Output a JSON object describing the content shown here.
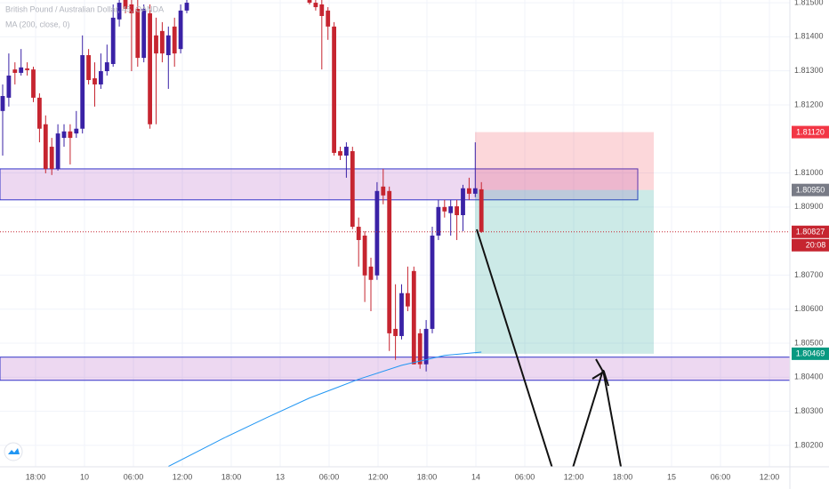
{
  "chart_data": {
    "type": "candlestick",
    "title": "British Pound / Australian Dollar, 45, OANDA",
    "up_color": "#3a22a6",
    "down_color": "#c62530",
    "open": [
      1.81182,
      1.81221,
      1.81304,
      1.81294,
      1.81307,
      1.81304,
      1.81221,
      1.81143,
      1.81077,
      1.81012,
      1.81103,
      1.81122,
      1.81116,
      1.8113,
      1.81346,
      1.81278,
      1.8126,
      1.81299,
      1.8132,
      1.81451,
      1.81508,
      1.81495,
      1.81482,
      1.81338,
      1.81469,
      1.81404,
      1.81417,
      1.81346,
      1.8143,
      1.81364,
      1.81477,
      null,
      null,
      null,
      null,
      null,
      null,
      null,
      null,
      null,
      null,
      null,
      null,
      null,
      null,
      null,
      null,
      null,
      null,
      null,
      1.81508,
      1.815,
      1.81495,
      1.81477,
      1.8143,
      1.81064,
      1.81051,
      1.81064,
      1.80842,
      1.80816,
      1.80725,
      1.80699,
      1.8096,
      1.80947,
      1.80542,
      1.80521,
      1.80647,
      1.80712,
      1.80529,
      1.80438,
      1.80542,
      1.80816,
      1.809,
      1.80882,
      1.80902,
      1.80876,
      1.80955,
      1.80939,
      1.80952
    ],
    "high": [
      1.8126,
      1.81351,
      1.81325,
      1.81364,
      1.81325,
      1.81312,
      1.81234,
      1.81169,
      1.81103,
      1.81143,
      1.81143,
      1.81143,
      1.81182,
      1.81404,
      1.81364,
      1.81325,
      1.81351,
      1.81377,
      1.81495,
      1.81508,
      1.81508,
      1.81508,
      1.81508,
      1.81495,
      1.81495,
      1.81456,
      1.81443,
      1.8143,
      1.81456,
      1.81495,
      1.81508,
      null,
      null,
      null,
      null,
      null,
      null,
      null,
      null,
      null,
      null,
      null,
      null,
      null,
      null,
      null,
      null,
      null,
      null,
      null,
      1.81508,
      1.81508,
      1.81508,
      1.81487,
      1.81443,
      1.81077,
      1.8109,
      1.81077,
      1.80869,
      1.80829,
      1.80751,
      1.80973,
      1.81012,
      1.8096,
      1.80673,
      1.80673,
      1.80725,
      1.80725,
      1.80542,
      1.80568,
      1.80842,
      1.80921,
      1.80921,
      1.80921,
      1.80921,
      1.80965,
      1.80986,
      1.8109,
      1.80973
    ],
    "low": [
      1.81051,
      1.81195,
      1.8126,
      1.81286,
      1.81286,
      1.81208,
      1.8109,
      1.80999,
      1.80994,
      1.81007,
      1.81077,
      1.81025,
      1.81103,
      1.81116,
      1.8126,
      1.81195,
      1.81247,
      1.81286,
      1.81312,
      1.8143,
      1.81469,
      1.81299,
      1.81312,
      1.81325,
      1.8113,
      1.81143,
      1.81325,
      1.81247,
      1.81312,
      1.81351,
      1.81469,
      null,
      null,
      null,
      null,
      null,
      null,
      null,
      null,
      null,
      null,
      null,
      null,
      null,
      null,
      null,
      null,
      null,
      null,
      null,
      1.81495,
      1.81477,
      1.81304,
      1.81391,
      1.81051,
      1.81038,
      1.80986,
      1.80835,
      1.80725,
      1.80621,
      1.80594,
      1.80686,
      1.80908,
      1.80477,
      1.80451,
      1.80511,
      1.80594,
      1.80438,
      1.80425,
      1.80417,
      1.80529,
      1.80803,
      1.80869,
      1.80816,
      1.80803,
      1.80829,
      1.80921,
      1.80929,
      1.80824
    ],
    "close": [
      1.81226,
      1.81286,
      1.81294,
      1.8131,
      1.81302,
      1.81221,
      1.8113,
      1.81012,
      1.81012,
      1.81116,
      1.81122,
      1.81103,
      1.8113,
      1.81346,
      1.81273,
      1.8126,
      1.81299,
      1.81325,
      1.81456,
      1.815,
      1.81482,
      1.81469,
      1.81338,
      1.81482,
      1.81143,
      1.81351,
      1.81351,
      1.81404,
      1.81351,
      1.81477,
      1.815,
      null,
      null,
      null,
      null,
      null,
      null,
      null,
      null,
      null,
      null,
      null,
      null,
      null,
      null,
      null,
      null,
      null,
      null,
      null,
      1.815,
      1.81487,
      1.81461,
      1.8143,
      1.81059,
      1.81051,
      1.81077,
      1.80842,
      1.80803,
      1.80699,
      1.80686,
      1.80947,
      1.80934,
      1.80529,
      1.80521,
      1.80647,
      1.80608,
      1.80438,
      1.80438,
      1.80542,
      1.80816,
      1.809,
      1.80887,
      1.80902,
      1.80876,
      1.80955,
      1.80939,
      1.80955,
      1.80827
    ],
    "ma": {
      "name": "MA (200, close, 0)",
      "color": "#2196f3",
      "x": [
        27,
        36,
        43,
        50,
        58,
        65,
        72,
        78
      ],
      "values": [
        1.80138,
        1.80221,
        1.80281,
        1.80339,
        1.80394,
        1.80435,
        1.80464,
        1.80474
      ]
    },
    "zones": [
      {
        "top": 1.81012,
        "bottom": 1.80921
      },
      {
        "top": 1.80459,
        "bottom": 1.80391
      }
    ],
    "position": {
      "stop": 1.8112,
      "entry": 1.8095,
      "target": 1.80469
    },
    "ylim": [
      1.80137,
      1.81508
    ],
    "yticks": [
      {
        "value": 1.815,
        "label": "1.81500"
      },
      {
        "value": 1.814,
        "label": "1.81400"
      },
      {
        "value": 1.813,
        "label": "1.81300"
      },
      {
        "value": 1.812,
        "label": "1.81200"
      },
      {
        "value": 1.81,
        "label": "1.81000"
      },
      {
        "value": 1.809,
        "label": "1.80900"
      },
      {
        "value": 1.807,
        "label": "1.80700"
      },
      {
        "value": 1.806,
        "label": "1.80600"
      },
      {
        "value": 1.805,
        "label": "1.80500"
      },
      {
        "value": 1.804,
        "label": "1.80400"
      },
      {
        "value": 1.803,
        "label": "1.80300"
      },
      {
        "value": 1.802,
        "label": "1.80200"
      }
    ],
    "xticks": [
      "18:00",
      "10",
      "06:00",
      "12:00",
      "18:00",
      "13",
      "06:00",
      "12:00",
      "18:00",
      "14",
      "06:00",
      "12:00",
      "18:00",
      "15",
      "06:00",
      "12:00"
    ],
    "price_labels": [
      {
        "value": 1.8112,
        "label": "1.81120",
        "color": "#f23645"
      },
      {
        "value": 1.8095,
        "label": "1.80950",
        "color": "#787b86"
      },
      {
        "value": 1.80827,
        "label": "1.80827",
        "color": "#c62530"
      },
      {
        "value": 1.80469,
        "label": "1.80469",
        "color": "#089981"
      }
    ],
    "countdown": "20:08",
    "grid": true
  }
}
